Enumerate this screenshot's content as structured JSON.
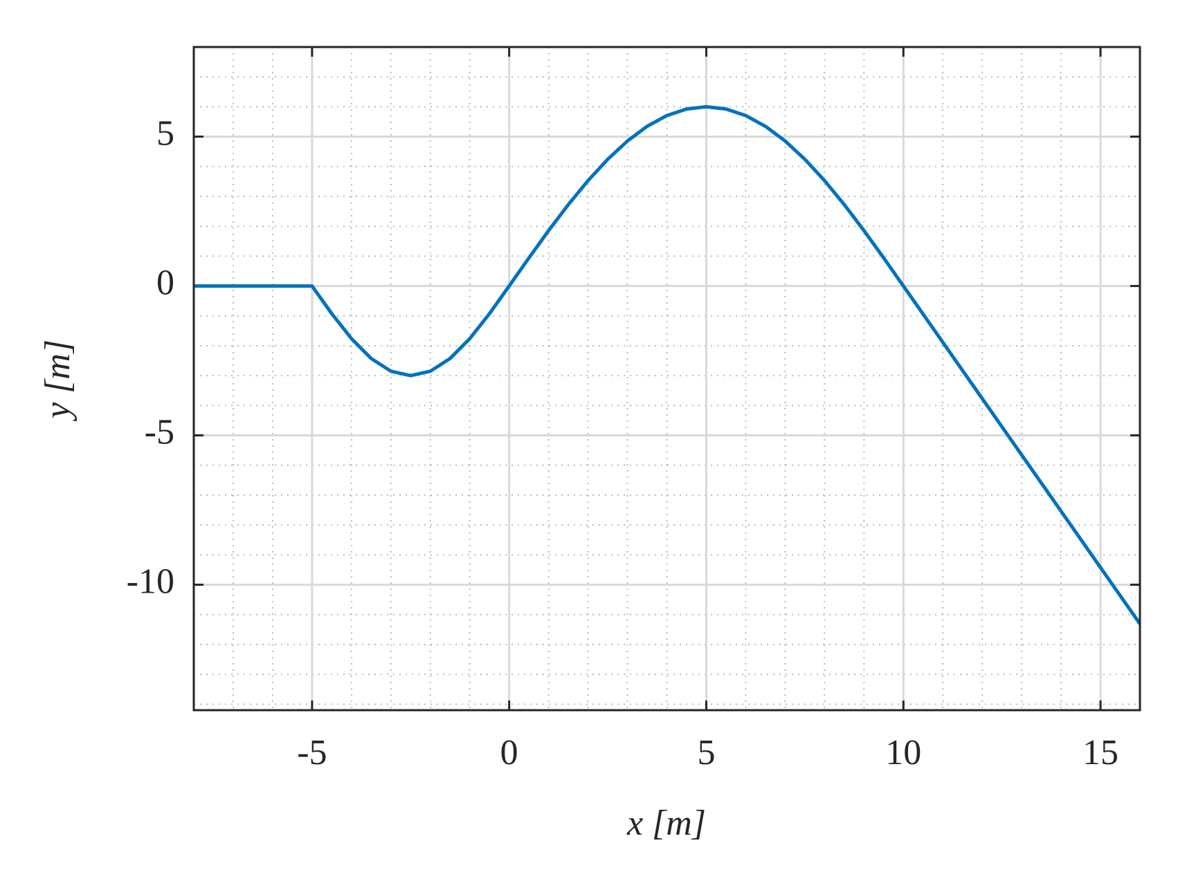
{
  "chart_data": {
    "type": "line",
    "xlabel": "x [m]",
    "ylabel": "y [m]",
    "x": [
      -8,
      -7.5,
      -7,
      -6.5,
      -6,
      -5.5,
      -5,
      -4.5,
      -4,
      -3.5,
      -3,
      -2.5,
      -2,
      -1.5,
      -1,
      -0.5,
      0,
      0.5,
      1,
      1.5,
      2,
      2.5,
      3,
      3.5,
      4,
      4.5,
      5,
      5.5,
      6,
      6.5,
      7,
      7.5,
      8,
      8.5,
      9,
      9.5,
      10,
      16
    ],
    "series": [
      {
        "color": "#0072bd",
        "values": [
          0,
          0,
          0,
          0,
          0,
          0,
          0,
          -0.927,
          -1.763,
          -2.427,
          -2.853,
          -3,
          -2.853,
          -2.427,
          -1.763,
          -0.927,
          0,
          0.939,
          1.854,
          2.724,
          3.527,
          4.243,
          4.854,
          5.346,
          5.706,
          5.926,
          6,
          5.926,
          5.706,
          5.346,
          4.854,
          4.243,
          3.527,
          2.724,
          1.854,
          0.939,
          0,
          -11.31
        ]
      }
    ],
    "xlim": [
      -8,
      16
    ],
    "ylim": [
      -14.2,
      8
    ],
    "xticks": [
      -5,
      0,
      5,
      10,
      15
    ],
    "yticks": [
      -10,
      -5,
      0,
      5
    ],
    "grid": true,
    "minor_grid": true
  }
}
